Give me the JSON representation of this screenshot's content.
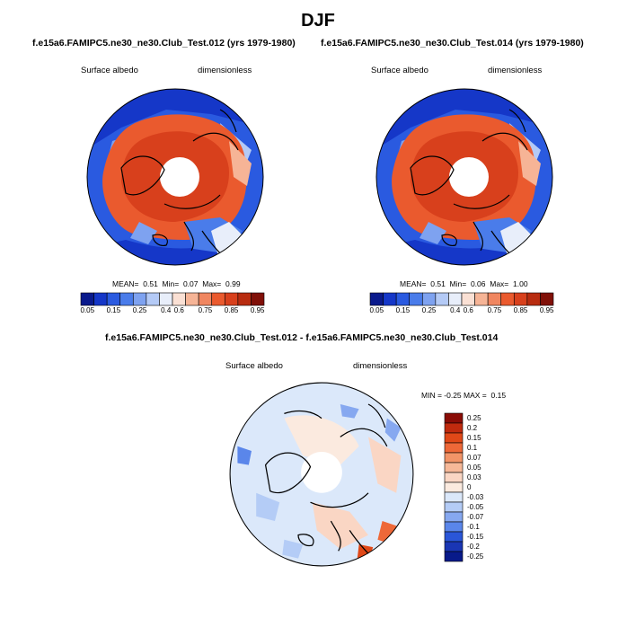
{
  "title": "DJF",
  "panels": [
    {
      "id": "left",
      "title": "f.e15a6.FAMIPC5.ne30_ne30.Club_Test.012 (yrs 1979-1980)",
      "variable": "Surface albedo",
      "units": "dimensionless",
      "stats": {
        "mean_label": "MEAN=",
        "mean": "0.51",
        "min_label": "Min=",
        "min": "0.07",
        "max_label": "Max=",
        "max": "0.99"
      }
    },
    {
      "id": "right",
      "title": "f.e15a6.FAMIPC5.ne30_ne30.Club_Test.014 (yrs 1979-1980)",
      "variable": "Surface albedo",
      "units": "dimensionless",
      "stats": {
        "mean_label": "MEAN=",
        "mean": "0.51",
        "min_label": "Min=",
        "min": "0.06",
        "max_label": "Max=",
        "max": "1.00"
      }
    },
    {
      "id": "diff",
      "title": "f.e15a6.FAMIPC5.ne30_ne30.Club_Test.012 - f.e15a6.FAMIPC5.ne30_ne30.Club_Test.014",
      "variable": "Surface albedo",
      "units": "dimensionless",
      "stats": {
        "min_label": "MIN =",
        "min": "-0.25",
        "max_label": "MAX =",
        "max": "0.15"
      }
    }
  ],
  "colorbar_horizontal": {
    "colors": [
      "#0a1a8c",
      "#1537c8",
      "#2a5ae0",
      "#4a7cea",
      "#7ea2f0",
      "#b4caf6",
      "#e8eefa",
      "#fae0d4",
      "#f6b496",
      "#f08660",
      "#ea5a2e",
      "#d8401c",
      "#b82c10",
      "#801008"
    ],
    "labels": [
      "0.05",
      "0.15",
      "0.25",
      "0.4",
      "0.6",
      "0.75",
      "0.85",
      "0.95"
    ]
  },
  "colorbar_vertical": {
    "colors": [
      "#8a0c06",
      "#c02a0e",
      "#e04818",
      "#ee6838",
      "#f29468",
      "#f6b898",
      "#fad6c4",
      "#fbeadf",
      "#dbe8fa",
      "#b4ccf6",
      "#86a8f0",
      "#5a86ea",
      "#2a56d8",
      "#1a36b4",
      "#081a8a"
    ],
    "labels": [
      "0.25",
      "0.2",
      "0.15",
      "0.1",
      "0.07",
      "0.05",
      "0.03",
      "0",
      "-0.03",
      "-0.05",
      "-0.07",
      "-0.1",
      "-0.15",
      "-0.2",
      "-0.25"
    ]
  }
}
